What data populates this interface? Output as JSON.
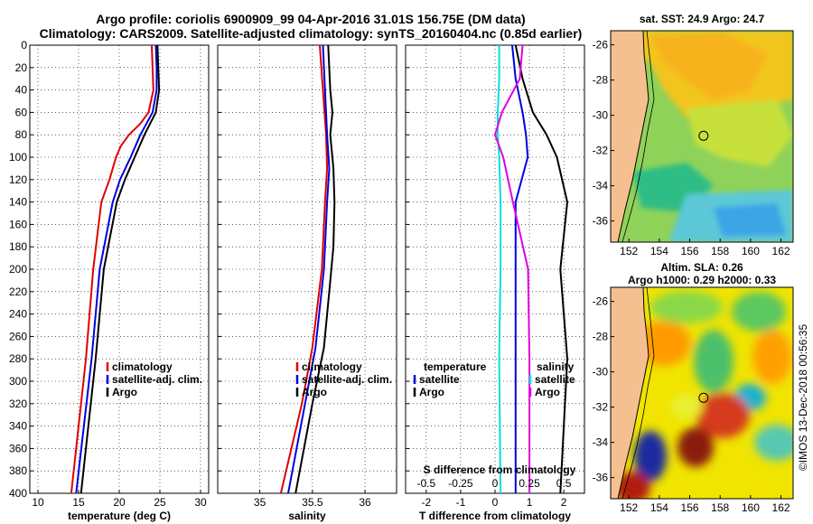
{
  "title": {
    "line1": "Argo profile: coriolis 6900909_99 04-Apr-2016 31.01S 156.75E (DM data)",
    "line2": "Climatology: CARS2009. Satellite-adjusted climatology: synTS_20160404.nc (0.85d earlier)"
  },
  "footer": "©IMOS 13-Dec-2018 00:56:35",
  "colors": {
    "climatology": "#e00000",
    "satellite": "#0000e0",
    "argo": "#000000",
    "cyan": "#00e0e0",
    "magenta": "#e000e0",
    "land": "#f5c08f"
  },
  "depth_ticks": [
    "0",
    "20",
    "40",
    "60",
    "80",
    "100",
    "120",
    "140",
    "160",
    "180",
    "200",
    "220",
    "240",
    "260",
    "280",
    "300",
    "320",
    "340",
    "360",
    "380",
    "400"
  ],
  "chart_data": [
    {
      "type": "line",
      "id": "temperature",
      "xlabel": "temperature (deg C)",
      "ylabel": "depth",
      "xlim": [
        9,
        31
      ],
      "ylim": [
        400,
        0
      ],
      "xticks": [
        10,
        15,
        20,
        25,
        30
      ],
      "x_tick_labels": [
        "10",
        "15",
        "20",
        "25",
        "30"
      ],
      "series": [
        {
          "name": "climatology",
          "color": "#e00000",
          "depth": [
            0,
            20,
            40,
            60,
            70,
            80,
            90,
            100,
            120,
            140,
            200,
            280,
            400
          ],
          "values": [
            24,
            24.1,
            24.2,
            23.6,
            22.6,
            21.2,
            20.2,
            19.6,
            18.8,
            17.8,
            16.8,
            15.9,
            14.1
          ]
        },
        {
          "name": "satellite-adj. clim.",
          "color": "#0000e0",
          "depth": [
            0,
            20,
            40,
            60,
            80,
            100,
            120,
            140,
            200,
            280,
            400
          ],
          "values": [
            24.5,
            24.6,
            24.6,
            24.1,
            22.6,
            21.4,
            20.1,
            19.2,
            17.6,
            16.6,
            14.7
          ]
        },
        {
          "name": "Argo",
          "color": "#000000",
          "depth": [
            0,
            20,
            40,
            60,
            80,
            100,
            120,
            140,
            200,
            280,
            400
          ],
          "values": [
            24.7,
            24.8,
            24.9,
            24.5,
            23.1,
            21.9,
            20.7,
            19.7,
            18.1,
            17.1,
            15.3
          ]
        }
      ],
      "legend": [
        "climatology",
        "satellite-adj. clim.",
        "Argo"
      ]
    },
    {
      "type": "line",
      "id": "salinity",
      "xlabel": "salinity",
      "ylabel": "depth",
      "xlim": [
        34.6,
        36.3
      ],
      "ylim": [
        400,
        0
      ],
      "xticks": [
        35,
        35.5,
        36
      ],
      "x_tick_labels": [
        "35",
        "35.5",
        "36"
      ],
      "series": [
        {
          "name": "climatology",
          "color": "#e00000",
          "depth": [
            0,
            40,
            80,
            110,
            140,
            200,
            270,
            320,
            400
          ],
          "values": [
            35.57,
            35.6,
            35.63,
            35.64,
            35.62,
            35.59,
            35.5,
            35.4,
            35.2
          ]
        },
        {
          "name": "satellite-adj. clim.",
          "color": "#0000e0",
          "depth": [
            0,
            40,
            80,
            110,
            140,
            200,
            270,
            320,
            400
          ],
          "values": [
            35.6,
            35.62,
            35.64,
            35.66,
            35.64,
            35.61,
            35.53,
            35.43,
            35.27
          ]
        },
        {
          "name": "Argo",
          "color": "#000000",
          "depth": [
            0,
            40,
            60,
            80,
            110,
            140,
            180,
            220,
            270,
            320,
            400
          ],
          "values": [
            35.65,
            35.67,
            35.69,
            35.67,
            35.7,
            35.71,
            35.7,
            35.66,
            35.61,
            35.5,
            35.34
          ]
        }
      ],
      "legend": [
        "climatology",
        "satellite-adj. clim.",
        "Argo"
      ]
    },
    {
      "type": "line",
      "id": "difference",
      "xlabel": "T difference from climatology",
      "x2label": "S difference from climatology",
      "ylabel": "depth",
      "xlim": [
        -2.6,
        2.6
      ],
      "ylim": [
        400,
        0
      ],
      "xticks": [
        -2,
        -1,
        0,
        1,
        2
      ],
      "x_tick_labels": [
        "-2",
        "-1",
        "0",
        "1",
        "2"
      ],
      "x2_tick_labels": [
        "-0.5",
        "-0.25",
        "0",
        "0.25",
        "0.5"
      ],
      "series": [
        {
          "name": "temperature satellite",
          "color": "#0000e0",
          "depth": [
            0,
            30,
            60,
            80,
            100,
            140,
            200,
            280,
            400
          ],
          "values": [
            0.5,
            0.6,
            0.8,
            0.9,
            0.95,
            0.6,
            0.6,
            0.6,
            0.6
          ]
        },
        {
          "name": "temperature Argo",
          "color": "#000000",
          "depth": [
            0,
            30,
            60,
            80,
            100,
            140,
            200,
            280,
            400
          ],
          "values": [
            0.6,
            0.8,
            1.1,
            1.5,
            1.8,
            2.1,
            1.9,
            2.1,
            1.9
          ]
        },
        {
          "name": "salinity satellite",
          "color": "#00e0e0",
          "depth": [
            0,
            30,
            60,
            80,
            100,
            140,
            200,
            280,
            400
          ],
          "values": [
            0.03,
            0.03,
            0.02,
            0.02,
            0.03,
            0.04,
            0.04,
            0.03,
            0.04
          ]
        },
        {
          "name": "salinity Argo",
          "color": "#e000e0",
          "depth": [
            0,
            30,
            60,
            80,
            100,
            140,
            200,
            280,
            400
          ],
          "values": [
            0.2,
            0.18,
            0.05,
            0,
            0.06,
            0.13,
            0.24,
            0.25,
            0.25
          ]
        }
      ],
      "legend_temperature_title": "temperature",
      "legend_salinity_title": "salinity",
      "legend_items": [
        "satellite",
        "Argo"
      ]
    },
    {
      "type": "heatmap",
      "id": "sst-map",
      "title": "sat. SST: 24.9 Argo: 24.7",
      "x_tick_labels": [
        "152",
        "154",
        "156",
        "158",
        "160",
        "162"
      ],
      "y_tick_labels": [
        "-26",
        "-28",
        "-30",
        "-32",
        "-34",
        "-36"
      ],
      "argo_position": {
        "lon": 156.75,
        "lat": -31.01
      }
    },
    {
      "type": "heatmap",
      "id": "sla-map",
      "title_line1": "Altim. SLA: 0.26",
      "title_line2": "Argo h1000: 0.29 h2000: 0.33",
      "x_tick_labels": [
        "152",
        "154",
        "156",
        "158",
        "160",
        "162"
      ],
      "y_tick_labels": [
        "-26",
        "-28",
        "-30",
        "-32",
        "-34",
        "-36"
      ],
      "argo_position": {
        "lon": 156.75,
        "lat": -31.01
      }
    }
  ]
}
